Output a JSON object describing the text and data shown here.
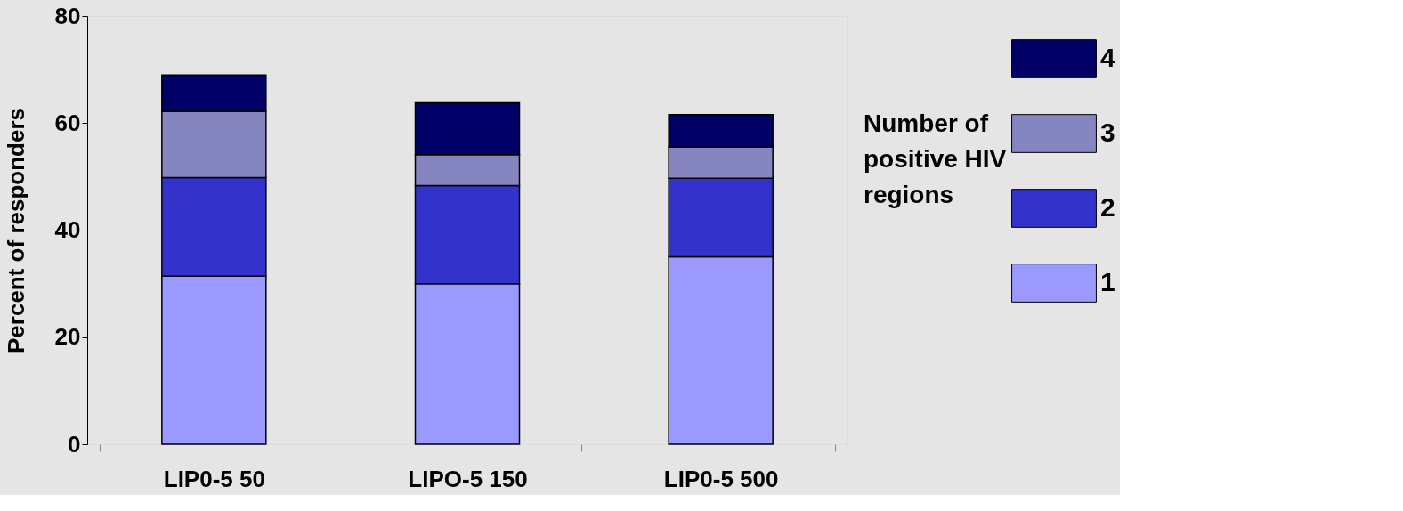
{
  "chart_data": {
    "type": "bar",
    "stacked": true,
    "ylabel": "Percent of responders",
    "legend_title": "Number of positive HIV regions",
    "categories": [
      "LIP0-5 50",
      "LIPO-5  150",
      "LIP0-5 500"
    ],
    "series": [
      {
        "name": "1",
        "color": "#9999ff",
        "values": [
          31.4,
          30.0,
          35.0
        ]
      },
      {
        "name": "2",
        "color": "#3333cc",
        "values": [
          18.4,
          18.3,
          14.7
        ]
      },
      {
        "name": "3",
        "color": "#8585c0",
        "values": [
          12.4,
          5.8,
          5.8
        ]
      },
      {
        "name": "4",
        "color": "#000066",
        "values": [
          6.8,
          9.7,
          6.1
        ]
      }
    ],
    "ylim": [
      0,
      80
    ],
    "yticks": [
      0,
      20,
      40,
      60,
      80
    ],
    "grid": false,
    "legend": "right"
  }
}
